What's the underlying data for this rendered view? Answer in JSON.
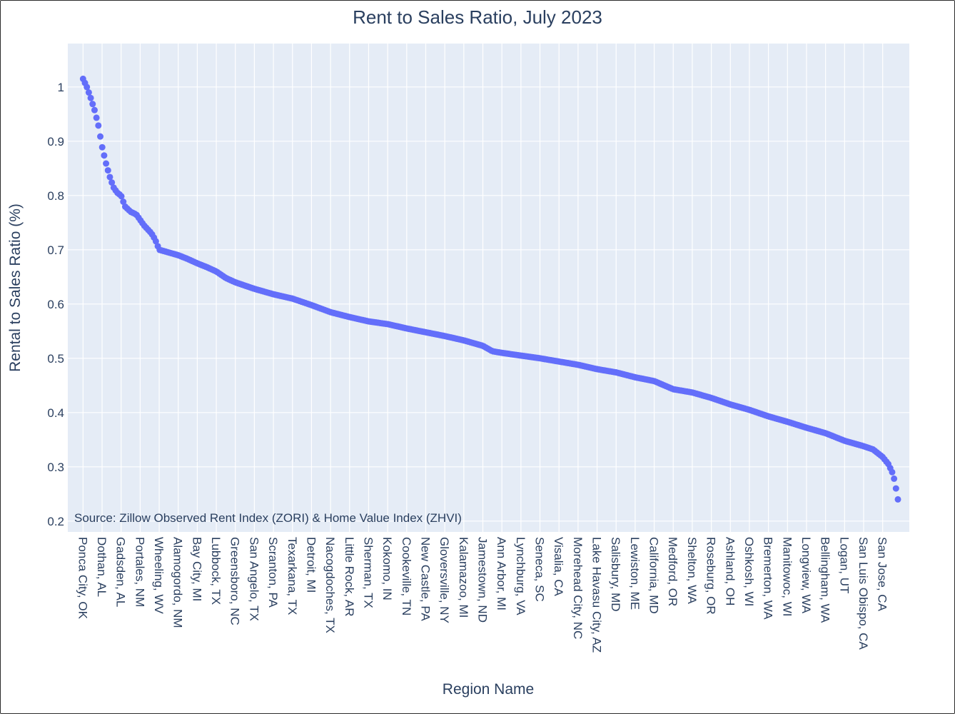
{
  "chart_data": {
    "type": "scatter",
    "title": "Rent to Sales Ratio, July 2023",
    "xlabel": "Region Name",
    "ylabel": "Rental to Sales Ratio (%)",
    "annotation": "Source: Zillow Observed Rent Index (ZORI) & Home Value Index (ZHVI)",
    "marker_color": "#636efa",
    "plot_background": "#e5ecf6",
    "grid": true,
    "legend": false,
    "ylim": [
      0.18,
      1.08
    ],
    "y_ticks": [
      0.2,
      0.3,
      0.4,
      0.5,
      0.6,
      0.7,
      0.8,
      0.9,
      1
    ],
    "y_tick_labels": [
      "0.2",
      "0.3",
      "0.4",
      "0.5",
      "0.6",
      "0.7",
      "0.8",
      "0.9",
      "1"
    ],
    "x_tick_labels": [
      "Ponca City, OK",
      "Dothan, AL",
      "Gadsden, AL",
      "Portales, NM",
      "Wheeling, WV",
      "Alamogordo, NM",
      "Bay City, MI",
      "Lubbock, TX",
      "Greensboro, NC",
      "San Angelo, TX",
      "Scranton, PA",
      "Texarkana, TX",
      "Detroit, MI",
      "Nacogdoches, TX",
      "Little Rock, AR",
      "Sherman, TX",
      "Kokomo, IN",
      "Cookeville, TN",
      "New Castle, PA",
      "Gloversville, NY",
      "Kalamazoo, MI",
      "Jamestown, ND",
      "Ann Arbor, MI",
      "Lynchburg, VA",
      "Seneca, SC",
      "Visalia, CA",
      "Morehead City, NC",
      "Lake Havasu City, AZ",
      "Salisbury, MD",
      "Lewiston, ME",
      "California, MD",
      "Medford, OR",
      "Shelton, WA",
      "Roseburg, OR",
      "Ashland, OH",
      "Oshkosh, WI",
      "Bremerton, WA",
      "Manitowoc, WI",
      "Longview, WA",
      "Bellingham, WA",
      "Logan, UT",
      "San Luis Obispo, CA",
      "San Jose, CA"
    ],
    "x_range": [
      -8,
      434
    ],
    "x_tick_spacing": 10,
    "n_points": 426,
    "trend_knots": [
      [
        0,
        1.015
      ],
      [
        2,
        1.0
      ],
      [
        4,
        0.98
      ],
      [
        6,
        0.958
      ],
      [
        8,
        0.93
      ],
      [
        10,
        0.89
      ],
      [
        12,
        0.86
      ],
      [
        14,
        0.835
      ],
      [
        16,
        0.815
      ],
      [
        18,
        0.805
      ],
      [
        20,
        0.8
      ],
      [
        22,
        0.78
      ],
      [
        25,
        0.77
      ],
      [
        28,
        0.765
      ],
      [
        32,
        0.745
      ],
      [
        36,
        0.73
      ],
      [
        38,
        0.718
      ],
      [
        40,
        0.7
      ],
      [
        45,
        0.695
      ],
      [
        50,
        0.69
      ],
      [
        55,
        0.683
      ],
      [
        60,
        0.675
      ],
      [
        65,
        0.668
      ],
      [
        70,
        0.66
      ],
      [
        75,
        0.648
      ],
      [
        80,
        0.64
      ],
      [
        90,
        0.628
      ],
      [
        100,
        0.618
      ],
      [
        110,
        0.61
      ],
      [
        120,
        0.598
      ],
      [
        130,
        0.585
      ],
      [
        140,
        0.576
      ],
      [
        150,
        0.568
      ],
      [
        160,
        0.563
      ],
      [
        170,
        0.555
      ],
      [
        180,
        0.548
      ],
      [
        190,
        0.541
      ],
      [
        200,
        0.533
      ],
      [
        210,
        0.523
      ],
      [
        215,
        0.513
      ],
      [
        220,
        0.51
      ],
      [
        230,
        0.505
      ],
      [
        240,
        0.5
      ],
      [
        250,
        0.494
      ],
      [
        260,
        0.488
      ],
      [
        270,
        0.48
      ],
      [
        280,
        0.474
      ],
      [
        290,
        0.465
      ],
      [
        300,
        0.458
      ],
      [
        310,
        0.443
      ],
      [
        320,
        0.437
      ],
      [
        330,
        0.427
      ],
      [
        340,
        0.415
      ],
      [
        350,
        0.405
      ],
      [
        360,
        0.393
      ],
      [
        370,
        0.383
      ],
      [
        380,
        0.372
      ],
      [
        390,
        0.362
      ],
      [
        400,
        0.348
      ],
      [
        410,
        0.338
      ],
      [
        415,
        0.332
      ],
      [
        420,
        0.318
      ],
      [
        423,
        0.305
      ],
      [
        425,
        0.29
      ],
      [
        426,
        0.278
      ],
      [
        427,
        0.26
      ],
      [
        428,
        0.24
      ]
    ]
  }
}
